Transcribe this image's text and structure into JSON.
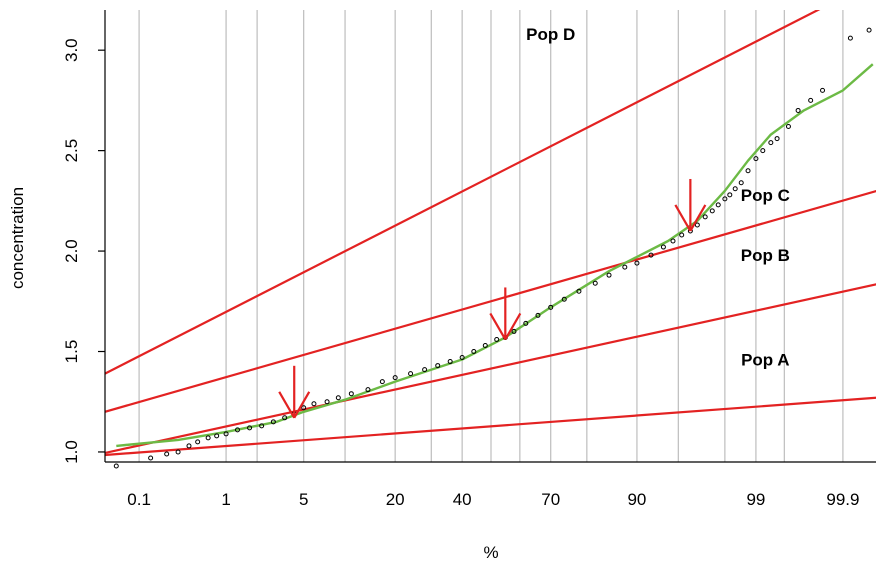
{
  "chart_data": {
    "type": "scatter",
    "xlabel": "%",
    "ylabel": "concentration",
    "x_scale": "probability",
    "xlim": [
      0.035,
      99.965
    ],
    "ylim": [
      0.95,
      3.2
    ],
    "grid": "vertical",
    "x_ticks": [
      0.1,
      1,
      5,
      20,
      40,
      70,
      90,
      99,
      99.9
    ],
    "x_gridlines": [
      0.1,
      1,
      2,
      5,
      10,
      20,
      30,
      40,
      50,
      60,
      70,
      80,
      90,
      95,
      98,
      99,
      99.5,
      99.9
    ],
    "y_ticks": [
      1.0,
      1.5,
      2.0,
      2.5,
      3.0
    ],
    "y_tick_labels": [
      "1.0",
      "1.5",
      "2.0",
      "2.5",
      "3.0"
    ],
    "series": [
      {
        "type": "points",
        "points": [
          [
            0.05,
            0.93
          ],
          [
            0.14,
            0.97
          ],
          [
            0.22,
            0.99
          ],
          [
            0.3,
            1.0
          ],
          [
            0.4,
            1.03
          ],
          [
            0.5,
            1.05
          ],
          [
            0.65,
            1.07
          ],
          [
            0.8,
            1.08
          ],
          [
            1.0,
            1.09
          ],
          [
            1.3,
            1.11
          ],
          [
            1.7,
            1.12
          ],
          [
            2.2,
            1.13
          ],
          [
            2.8,
            1.15
          ],
          [
            3.5,
            1.17
          ],
          [
            4.2,
            1.19
          ],
          [
            5.0,
            1.22
          ],
          [
            6.0,
            1.24
          ],
          [
            7.5,
            1.25
          ],
          [
            9.0,
            1.27
          ],
          [
            11.0,
            1.29
          ],
          [
            14.0,
            1.31
          ],
          [
            17.0,
            1.35
          ],
          [
            20.0,
            1.37
          ],
          [
            24.0,
            1.39
          ],
          [
            28.0,
            1.41
          ],
          [
            32.0,
            1.43
          ],
          [
            36.0,
            1.45
          ],
          [
            40.0,
            1.47
          ],
          [
            44.0,
            1.5
          ],
          [
            48.0,
            1.53
          ],
          [
            52.0,
            1.56
          ],
          [
            55.0,
            1.57
          ],
          [
            58.0,
            1.6
          ],
          [
            62.0,
            1.64
          ],
          [
            66.0,
            1.68
          ],
          [
            70.0,
            1.72
          ],
          [
            74.0,
            1.76
          ],
          [
            78.0,
            1.8
          ],
          [
            82.0,
            1.84
          ],
          [
            85.0,
            1.88
          ],
          [
            88.0,
            1.92
          ],
          [
            90.0,
            1.94
          ],
          [
            92.0,
            1.98
          ],
          [
            93.5,
            2.02
          ],
          [
            94.5,
            2.05
          ],
          [
            95.3,
            2.08
          ],
          [
            96.0,
            2.1
          ],
          [
            96.5,
            2.13
          ],
          [
            97.0,
            2.17
          ],
          [
            97.4,
            2.2
          ],
          [
            97.7,
            2.23
          ],
          [
            98.0,
            2.26
          ],
          [
            98.2,
            2.28
          ],
          [
            98.4,
            2.31
          ],
          [
            98.6,
            2.34
          ],
          [
            98.8,
            2.4
          ],
          [
            99.0,
            2.46
          ],
          [
            99.15,
            2.5
          ],
          [
            99.3,
            2.54
          ],
          [
            99.4,
            2.56
          ],
          [
            99.55,
            2.62
          ],
          [
            99.65,
            2.7
          ],
          [
            99.75,
            2.75
          ],
          [
            99.82,
            2.8
          ],
          [
            99.92,
            3.06
          ],
          [
            99.955,
            3.1
          ]
        ]
      },
      {
        "type": "fit",
        "points": [
          [
            0.05,
            1.03
          ],
          [
            0.3,
            1.06
          ],
          [
            1.0,
            1.1
          ],
          [
            3.0,
            1.15
          ],
          [
            5.0,
            1.2
          ],
          [
            10.0,
            1.26
          ],
          [
            20.0,
            1.35
          ],
          [
            40.0,
            1.46
          ],
          [
            55.0,
            1.57
          ],
          [
            70.0,
            1.72
          ],
          [
            85.0,
            1.9
          ],
          [
            94.0,
            2.05
          ],
          [
            96.5,
            2.15
          ],
          [
            98.0,
            2.3
          ],
          [
            98.8,
            2.45
          ],
          [
            99.3,
            2.58
          ],
          [
            99.7,
            2.7
          ],
          [
            99.9,
            2.8
          ],
          [
            99.96,
            2.93
          ]
        ]
      },
      {
        "type": "population-lines",
        "lines": [
          {
            "label": "Pop A",
            "x1": 0.035,
            "y1": 0.985,
            "x2": 99.965,
            "y2": 1.27
          },
          {
            "label": "Pop B",
            "x1": 0.035,
            "y1": 0.995,
            "x2": 99.965,
            "y2": 1.835
          },
          {
            "label": "Pop C",
            "x1": 0.035,
            "y1": 1.2,
            "x2": 99.965,
            "y2": 2.3
          },
          {
            "label": "Pop D",
            "x1": 0.035,
            "y1": 1.39,
            "x2": 99.965,
            "y2": 3.35
          }
        ]
      }
    ],
    "arrows": [
      {
        "x": 4.2,
        "y": 1.17
      },
      {
        "x": 55.0,
        "y": 1.56
      },
      {
        "x": 96.0,
        "y": 2.1
      }
    ],
    "annotations": [
      {
        "text": "Pop D",
        "x": 70.0,
        "y": 3.08
      },
      {
        "text": "Pop C",
        "x": 99.2,
        "y": 2.28
      },
      {
        "text": "Pop B",
        "x": 99.2,
        "y": 1.98
      },
      {
        "text": "Pop A",
        "x": 99.2,
        "y": 1.46
      }
    ],
    "colors": {
      "population_lines": "#e32222",
      "arrows": "#e32222",
      "fit": "#6cba45",
      "points": "#000000",
      "grid": "#bdbdbd",
      "axes": "#000000"
    }
  }
}
